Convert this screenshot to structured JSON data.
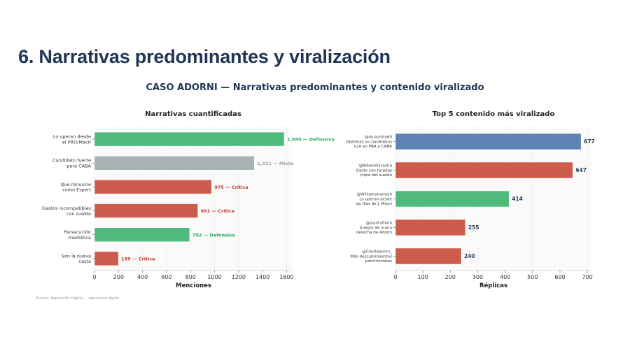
{
  "page_title": "6. Narrativas predominantes y viralización",
  "subtitle": "CASO ADORNI — Narrativas predominantes y contenido viralizado",
  "source": "Fuente: Reputación Digital — reputacion.digital",
  "colors": {
    "Defensiva": "#4fba7b",
    "Mixta": "#a8b3b5",
    "Critica": "#cd5c4c",
    "blue": "#5d82b3"
  },
  "chart_data": [
    {
      "type": "bar",
      "orientation": "horizontal",
      "title": "Narrativas cuantificadas",
      "xlabel": "Menciones",
      "xlim": [
        0,
        1650
      ],
      "ticks": [
        0,
        200,
        400,
        600,
        800,
        1000,
        1200,
        1400,
        1600
      ],
      "grid": true,
      "categories": [
        "Lo operan desde\nel PRO/Macri",
        "Candidato fuerte\npara CABA",
        "Que renuncie\ncomo Espert",
        "Gastos incompatibles\ncon sueldo",
        "Persecución\nmediática",
        "Son la nueva\ncasta"
      ],
      "values": [
        1580,
        1331,
        975,
        861,
        792,
        199
      ],
      "types": [
        "Defensiva",
        "Mixta",
        "Crítica",
        "Crítica",
        "Defensiva",
        "Crítica"
      ],
      "data_labels": [
        "1,580 — Defensiva",
        "1,331 — Mixta",
        "975 — Crítica",
        "861 — Crítica",
        "792 — Defensiva",
        "199 — Crítica"
      ]
    },
    {
      "type": "bar",
      "orientation": "horizontal",
      "title": "Top 5 contenido más viralizado",
      "xlabel": "Réplicas",
      "xlim": [
        0,
        715
      ],
      "ticks": [
        0,
        100,
        200,
        300,
        400,
        500,
        600,
        700
      ],
      "grid": true,
      "categories": [
        "@duraznito60\nOperetas vs candidatos\nLLA en PBA y CABA",
        "@BilbaoVizcacha\nGasto con tarjetas\ntriple del sueldo",
        "@Williamsmoreeh\nLo operan desde\nlas filas de J. Macri",
        "@juantufilaro\nSuegro de mano\nderecha de Adorni",
        "@Claritalomm_\nMás descubrimientos\npatrimoniales"
      ],
      "values": [
        677,
        647,
        414,
        255,
        240
      ],
      "bar_colors": [
        "#5d82b3",
        "#cd5c4c",
        "#4fba7b",
        "#cd5c4c",
        "#cd5c4c"
      ],
      "data_labels": [
        "677",
        "647",
        "414",
        "255",
        "240"
      ]
    }
  ]
}
